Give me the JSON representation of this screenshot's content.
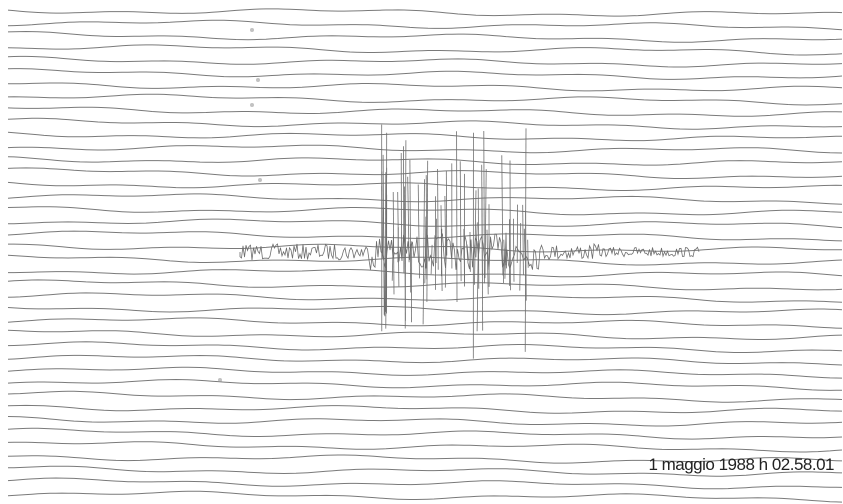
{
  "caption": "1 maggio 1988 h 02.58.01"
}
